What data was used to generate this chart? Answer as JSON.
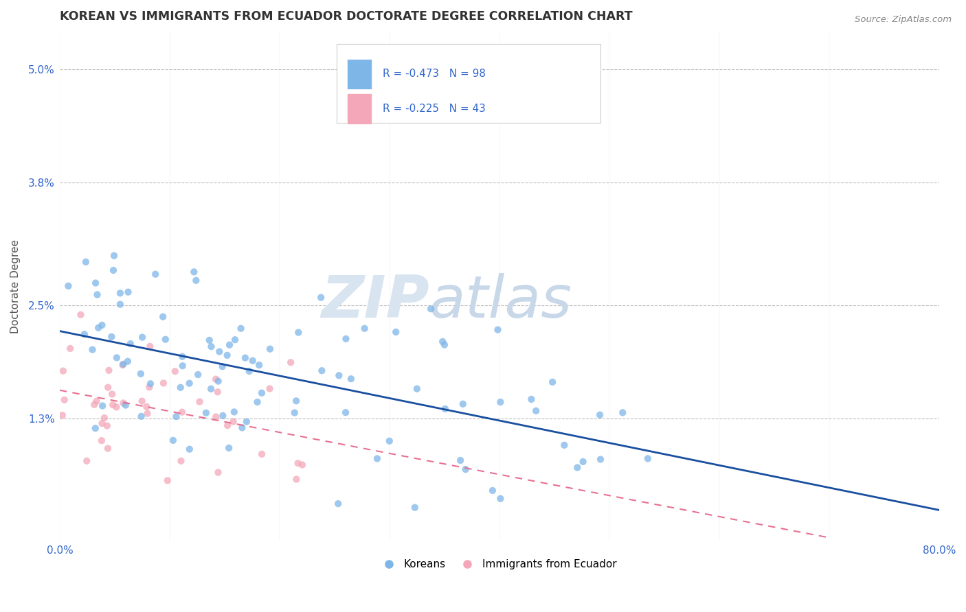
{
  "title": "KOREAN VS IMMIGRANTS FROM ECUADOR DOCTORATE DEGREE CORRELATION CHART",
  "source": "Source: ZipAtlas.com",
  "ylabel": "Doctorate Degree",
  "watermark_zip": "ZIP",
  "watermark_atlas": "atlas",
  "xlim": [
    0.0,
    0.8
  ],
  "ylim": [
    0.0,
    0.054
  ],
  "xticks": [
    0.0,
    0.1,
    0.2,
    0.3,
    0.4,
    0.5,
    0.6,
    0.7,
    0.8
  ],
  "xticklabels": [
    "0.0%",
    "",
    "",
    "",
    "",
    "",
    "",
    "",
    "80.0%"
  ],
  "yticks": [
    0.013,
    0.025,
    0.038,
    0.05
  ],
  "yticklabels": [
    "1.3%",
    "2.5%",
    "3.8%",
    "5.0%"
  ],
  "korean_color": "#7EB6E8",
  "ecuador_color": "#F4A7B9",
  "korean_label": "Koreans",
  "ecuador_label": "Immigrants from Ecuador",
  "korean_R": "-0.473",
  "korean_N": "98",
  "ecuador_R": "-0.225",
  "ecuador_N": "43",
  "legend_color": "#3366CC",
  "trendline_korean_color": "#1A4FA0",
  "trendline_ecuador_color": "#E87090",
  "background_color": "#FFFFFF",
  "grid_color": "#BBBBBB",
  "title_color": "#333333",
  "watermark_color": "#D8E4F0"
}
